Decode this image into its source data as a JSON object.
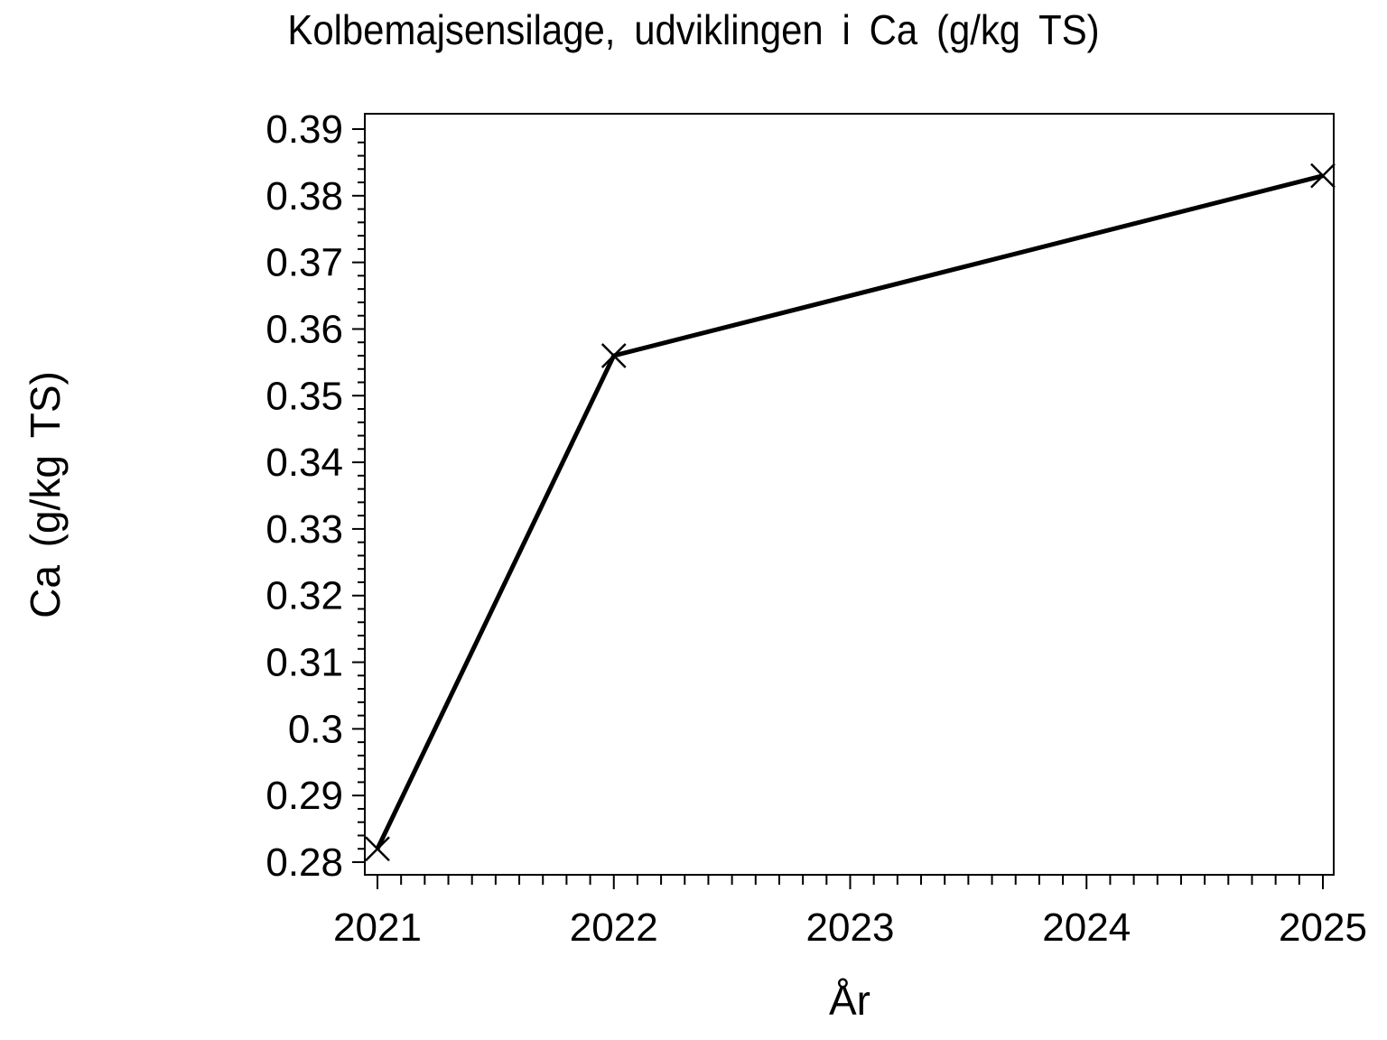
{
  "chart_data": {
    "type": "line",
    "title": "Kolbemajsensilage, udviklingen i Ca (g/kg TS)",
    "xlabel": "År",
    "ylabel": "Ca (g/kg TS)",
    "series": [
      {
        "name": "Ca",
        "x": [
          2021,
          2022,
          2025
        ],
        "values": [
          0.282,
          0.356,
          0.383
        ]
      }
    ],
    "marker": "x-cross",
    "grid": false,
    "legend": false,
    "colors": {
      "line": "#000000",
      "text": "#000000",
      "background": "#ffffff"
    },
    "x_axis": {
      "major_ticks": [
        2021,
        2022,
        2023,
        2024,
        2025
      ],
      "tick_labels": [
        "2021",
        "2022",
        "2023",
        "2024",
        "2025"
      ],
      "minor_step": 0.1,
      "range": [
        2021,
        2025
      ]
    },
    "y_axis": {
      "major_ticks": [
        0.39,
        0.38,
        0.37,
        0.36,
        0.35,
        0.34,
        0.33,
        0.32,
        0.31,
        0.3,
        0.29,
        0.28
      ],
      "tick_labels": [
        "0.39",
        "0.38",
        "0.37",
        "0.36",
        "0.35",
        "0.34",
        "0.33",
        "0.32",
        "0.31",
        "0.3",
        "0.29",
        "0.28"
      ],
      "minor_step": 0.002,
      "range": [
        0.28,
        0.39
      ]
    }
  }
}
